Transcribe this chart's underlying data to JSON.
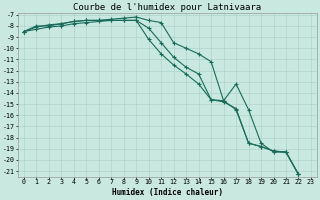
{
  "title": "Courbe de l'humidex pour Latnivaara",
  "xlabel": "Humidex (Indice chaleur)",
  "ylabel": "",
  "background_color": "#c8e8e0",
  "grid_color": "#afd4cc",
  "line_color": "#1a6b5a",
  "x_values": [
    0,
    1,
    2,
    3,
    4,
    5,
    6,
    7,
    8,
    9,
    10,
    11,
    12,
    13,
    14,
    15,
    16,
    17,
    18,
    19,
    20,
    21,
    22,
    23
  ],
  "line1": [
    -8.5,
    -8.0,
    -8.0,
    -7.8,
    -7.6,
    -7.5,
    -7.5,
    -7.4,
    -7.3,
    -7.2,
    -7.5,
    -7.7,
    -9.5,
    -10.0,
    -10.5,
    -11.2,
    -14.7,
    -13.2,
    -15.5,
    -18.5,
    -19.3,
    -19.3,
    -21.3,
    null
  ],
  "line2": [
    -8.5,
    -8.1,
    -7.9,
    -7.8,
    -7.6,
    -7.5,
    -7.5,
    -7.5,
    -7.5,
    -7.5,
    -8.2,
    -9.5,
    -10.8,
    -11.7,
    -12.3,
    -14.6,
    -14.7,
    -15.5,
    -18.5,
    -18.8,
    -19.2,
    -19.3,
    -21.3,
    null
  ],
  "line3": [
    -8.5,
    -8.3,
    -8.1,
    -8.0,
    -7.8,
    -7.7,
    -7.6,
    -7.5,
    -7.5,
    -7.5,
    -9.2,
    -10.5,
    -11.5,
    -12.3,
    -13.2,
    -14.6,
    -14.8,
    -15.4,
    -18.5,
    -18.8,
    -19.2,
    -19.3,
    -21.3,
    null
  ],
  "ylim": [
    -21.5,
    -6.8
  ],
  "xlim": [
    -0.5,
    23.5
  ],
  "yticks": [
    -7,
    -8,
    -9,
    -10,
    -11,
    -12,
    -13,
    -14,
    -15,
    -16,
    -17,
    -18,
    -19,
    -20,
    -21
  ],
  "xticks": [
    0,
    1,
    2,
    3,
    4,
    5,
    6,
    7,
    8,
    9,
    10,
    11,
    12,
    13,
    14,
    15,
    16,
    17,
    18,
    19,
    20,
    21,
    22,
    23
  ],
  "font_family": "monospace",
  "title_fontsize": 6.5,
  "label_fontsize": 5.5,
  "tick_fontsize": 4.8
}
